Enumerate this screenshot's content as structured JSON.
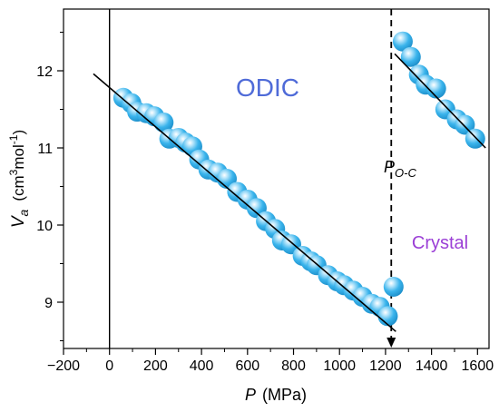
{
  "chart_data": {
    "type": "scatter",
    "xlabel_symbol": "P",
    "xlabel_unit": "(MPa)",
    "ylabel_symbol": "V",
    "ylabel_subscript": "a",
    "ylabel_unit_pre": "(cm",
    "ylabel_unit_sup1": "3",
    "ylabel_unit_mid": "mol",
    "ylabel_unit_sup2": "-1",
    "ylabel_unit_post": ")",
    "xlim": [
      -200,
      1650
    ],
    "ylim": [
      8.4,
      12.8
    ],
    "xticks": [
      -200,
      0,
      200,
      400,
      600,
      800,
      1000,
      1200,
      1400,
      1600
    ],
    "yticks": [
      9,
      10,
      11,
      12
    ],
    "annotations": {
      "odic": "ODIC",
      "crystal": "Crystal",
      "transition_symbol": "P",
      "transition_subscript": "O-C"
    },
    "transition_pressure": 1225,
    "colors": {
      "marker": "#3ab4ec",
      "odic_label": "#4f6bd8",
      "crystal_label": "#9b3fd6",
      "fit_line": "#000000"
    },
    "series": [
      {
        "points": [
          [
            60,
            11.65
          ],
          [
            95,
            11.58
          ],
          [
            120,
            11.47
          ],
          [
            160,
            11.45
          ],
          [
            195,
            11.41
          ],
          [
            235,
            11.33
          ],
          [
            260,
            11.12
          ],
          [
            300,
            11.13
          ],
          [
            330,
            11.07
          ],
          [
            360,
            11.02
          ],
          [
            390,
            10.85
          ],
          [
            430,
            10.72
          ],
          [
            470,
            10.68
          ],
          [
            510,
            10.6
          ],
          [
            555,
            10.43
          ],
          [
            600,
            10.33
          ],
          [
            640,
            10.22
          ],
          [
            680,
            10.05
          ],
          [
            720,
            9.95
          ],
          [
            750,
            9.8
          ],
          [
            790,
            9.75
          ],
          [
            840,
            9.6
          ],
          [
            875,
            9.53
          ],
          [
            900,
            9.48
          ],
          [
            950,
            9.35
          ],
          [
            990,
            9.27
          ],
          [
            1020,
            9.22
          ],
          [
            1060,
            9.15
          ],
          [
            1100,
            9.07
          ],
          [
            1140,
            8.98
          ],
          [
            1175,
            8.94
          ],
          [
            1210,
            8.82
          ]
        ]
      },
      {
        "points": [
          [
            1235,
            9.2
          ]
        ]
      },
      {
        "points": [
          [
            1275,
            12.38
          ],
          [
            1310,
            12.18
          ],
          [
            1345,
            11.95
          ],
          [
            1375,
            11.82
          ],
          [
            1420,
            11.77
          ],
          [
            1460,
            11.5
          ],
          [
            1510,
            11.37
          ],
          [
            1545,
            11.3
          ],
          [
            1590,
            11.12
          ]
        ]
      }
    ],
    "fit_lines": [
      {
        "from": [
          -70,
          11.96
        ],
        "to": [
          1245,
          8.62
        ]
      },
      {
        "from": [
          1240,
          12.22
        ],
        "to": [
          1635,
          11.0
        ]
      }
    ]
  }
}
